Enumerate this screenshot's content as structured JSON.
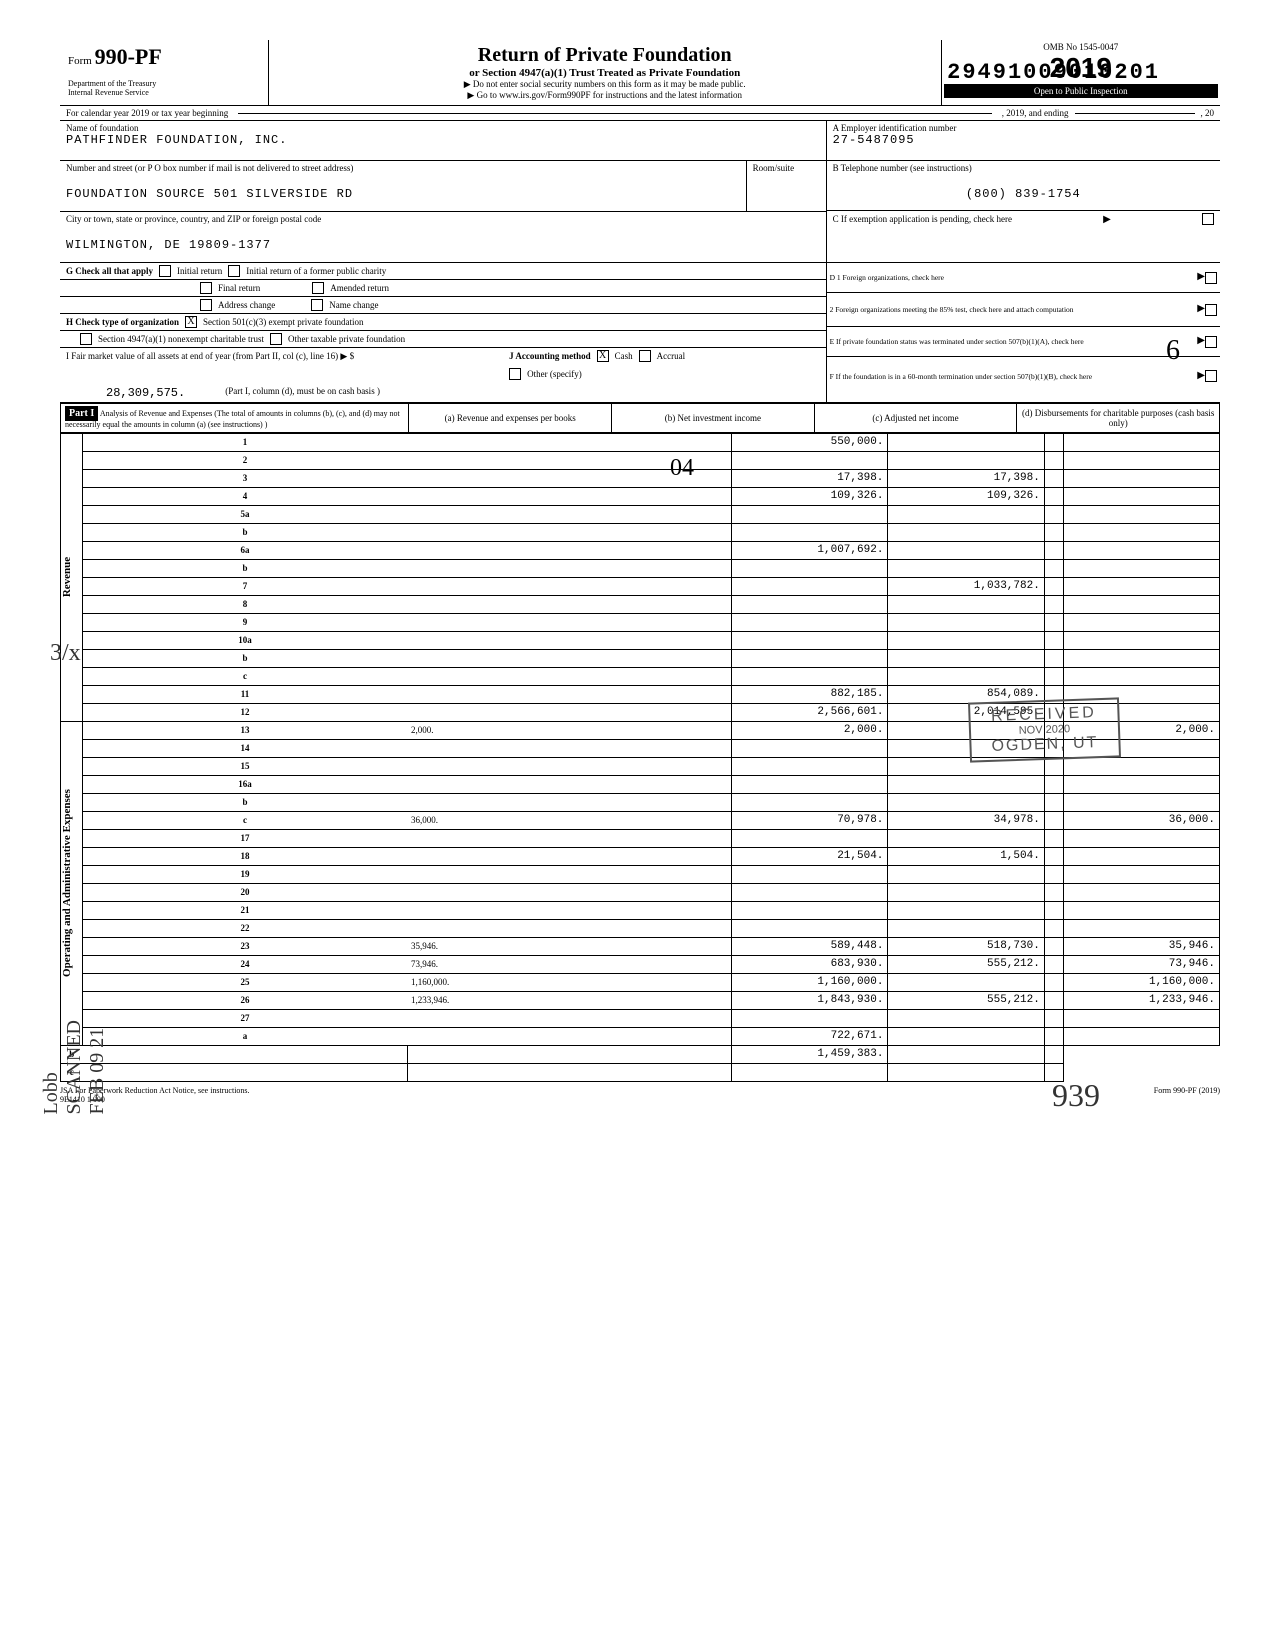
{
  "top_stamp": "29491009010201",
  "omb_no": "OMB No 1545-0047",
  "form_number": "990-PF",
  "form_prefix": "Form",
  "dept1": "Department of the Treasury",
  "dept2": "Internal Revenue Service",
  "title": "Return of Private Foundation",
  "subtitle": "or Section 4947(a)(1) Trust Treated as Private Foundation",
  "instruction1": "▶ Do not enter social security numbers on this form as it may be made public.",
  "instruction2": "▶ Go to www.irs.gov/Form990PF for instructions and the latest information",
  "year": "2019",
  "inspection": "Open to Public Inspection",
  "cal_year": "For calendar year 2019 or tax year beginning",
  "cal_year_mid": ", 2019, and ending",
  "cal_year_end": ", 20",
  "name_label": "Name of foundation",
  "foundation_name": "PATHFINDER FOUNDATION, INC.",
  "ein_label": "A  Employer identification number",
  "ein": "27-5487095",
  "addr_label": "Number and street (or P O  box number if mail is not delivered to street address)",
  "room_label": "Room/suite",
  "address": "FOUNDATION SOURCE 501 SILVERSIDE RD",
  "tel_label": "B  Telephone number (see instructions)",
  "telephone": "(800) 839-1754",
  "city_label": "City or town, state or province, country, and ZIP or foreign postal code",
  "city": "WILMINGTON, DE 19809-1377",
  "c_label": "C  If exemption application is pending, check here",
  "g_label": "G  Check all that apply",
  "g_initial": "Initial return",
  "g_initial_former": "Initial return of a former public charity",
  "g_final": "Final return",
  "g_amended": "Amended return",
  "g_addr": "Address change",
  "g_name": "Name change",
  "d1": "D  1  Foreign organizations, check here",
  "d2": "2  Foreign organizations meeting the 85% test, check here and attach computation",
  "h_label": "H  Check type of organization",
  "h_501c3": "Section 501(c)(3) exempt private foundation",
  "h_4947": "Section 4947(a)(1) nonexempt charitable trust",
  "h_other": "Other taxable private foundation",
  "e_label": "E  If private foundation status was terminated under section 507(b)(1)(A), check here",
  "i_label": "I  Fair market value of all assets at end of year (from Part II, col (c), line 16) ▶ $",
  "i_value": "28,309,575.",
  "j_label": "J Accounting method",
  "j_cash": "Cash",
  "j_accrual": "Accrual",
  "j_other": "Other (specify)",
  "j_note": "(Part I, column (d), must be on cash basis )",
  "f_label": "F  If the foundation is in a 60-month termination under section 507(b)(1)(B), check here",
  "part1": "Part I",
  "part1_title": "Analysis of Revenue and Expenses (The total of amounts in columns (b), (c), and (d) may not necessarily equal the amounts in column (a) (see instructions) )",
  "col_a": "(a) Revenue and expenses per books",
  "col_b": "(b) Net investment income",
  "col_c": "(c) Adjusted net income",
  "col_d": "(d) Disbursements for charitable purposes (cash basis only)",
  "revenue_label": "Revenue",
  "expenses_label": "Operating and Administrative Expenses",
  "lines": [
    {
      "n": "1",
      "d": "",
      "a": "550,000.",
      "b": "",
      "c": ""
    },
    {
      "n": "2",
      "d": "",
      "a": "",
      "b": "",
      "c": ""
    },
    {
      "n": "3",
      "d": "",
      "a": "17,398.",
      "b": "17,398.",
      "c": ""
    },
    {
      "n": "4",
      "d": "",
      "a": "109,326.",
      "b": "109,326.",
      "c": ""
    },
    {
      "n": "5a",
      "d": "",
      "a": "",
      "b": "",
      "c": ""
    },
    {
      "n": "b",
      "d": "",
      "a": "",
      "b": "",
      "c": ""
    },
    {
      "n": "6a",
      "d": "",
      "a": "1,007,692.",
      "b": "",
      "c": ""
    },
    {
      "n": "b",
      "d": "",
      "a": "",
      "b": "",
      "c": ""
    },
    {
      "n": "7",
      "d": "",
      "a": "",
      "b": "1,033,782.",
      "c": ""
    },
    {
      "n": "8",
      "d": "",
      "a": "",
      "b": "",
      "c": ""
    },
    {
      "n": "9",
      "d": "",
      "a": "",
      "b": "",
      "c": ""
    },
    {
      "n": "10a",
      "d": "",
      "a": "",
      "b": "",
      "c": ""
    },
    {
      "n": "b",
      "d": "",
      "a": "",
      "b": "",
      "c": ""
    },
    {
      "n": "c",
      "d": "",
      "a": "",
      "b": "",
      "c": ""
    },
    {
      "n": "11",
      "d": "",
      "a": "882,185.",
      "b": "854,089.",
      "c": ""
    },
    {
      "n": "12",
      "d": "",
      "a": "2,566,601.",
      "b": "2,014,595.",
      "c": ""
    },
    {
      "n": "13",
      "d": "2,000.",
      "a": "2,000.",
      "b": "",
      "c": ""
    },
    {
      "n": "14",
      "d": "",
      "a": "",
      "b": "",
      "c": ""
    },
    {
      "n": "15",
      "d": "",
      "a": "",
      "b": "",
      "c": ""
    },
    {
      "n": "16a",
      "d": "",
      "a": "",
      "b": "",
      "c": ""
    },
    {
      "n": "b",
      "d": "",
      "a": "",
      "b": "",
      "c": ""
    },
    {
      "n": "c",
      "d": "36,000.",
      "a": "70,978.",
      "b": "34,978.",
      "c": ""
    },
    {
      "n": "17",
      "d": "",
      "a": "",
      "b": "",
      "c": ""
    },
    {
      "n": "18",
      "d": "",
      "a": "21,504.",
      "b": "1,504.",
      "c": ""
    },
    {
      "n": "19",
      "d": "",
      "a": "",
      "b": "",
      "c": ""
    },
    {
      "n": "20",
      "d": "",
      "a": "",
      "b": "",
      "c": ""
    },
    {
      "n": "21",
      "d": "",
      "a": "",
      "b": "",
      "c": ""
    },
    {
      "n": "22",
      "d": "",
      "a": "",
      "b": "",
      "c": ""
    },
    {
      "n": "23",
      "d": "35,946.",
      "a": "589,448.",
      "b": "518,730.",
      "c": ""
    },
    {
      "n": "24",
      "d": "73,946.",
      "a": "683,930.",
      "b": "555,212.",
      "c": ""
    },
    {
      "n": "25",
      "d": "1,160,000.",
      "a": "1,160,000.",
      "b": "",
      "c": ""
    },
    {
      "n": "26",
      "d": "1,233,946.",
      "a": "1,843,930.",
      "b": "555,212.",
      "c": ""
    },
    {
      "n": "27",
      "d": "",
      "a": "",
      "b": "",
      "c": ""
    },
    {
      "n": "a",
      "d": "",
      "a": "722,671.",
      "b": "",
      "c": ""
    },
    {
      "n": "b",
      "d": "",
      "a": "",
      "b": "1,459,383.",
      "c": ""
    },
    {
      "n": "c",
      "d": "",
      "a": "",
      "b": "",
      "c": ""
    }
  ],
  "footer_left": "JSA For Paperwork Reduction Act Notice, see instructions.",
  "footer_left2": "9E1410 1 000",
  "footer_right": "Form 990-PF (2019)",
  "received": "RECEIVED",
  "received_date": "NOV 2020",
  "received_loc": "OGDEN, UT",
  "hw_scanned": "Lobb SCANNED FEB 09 21",
  "hw_939": "939",
  "hw_3x": "3/x",
  "hw_04": "04",
  "hw_6": "6"
}
